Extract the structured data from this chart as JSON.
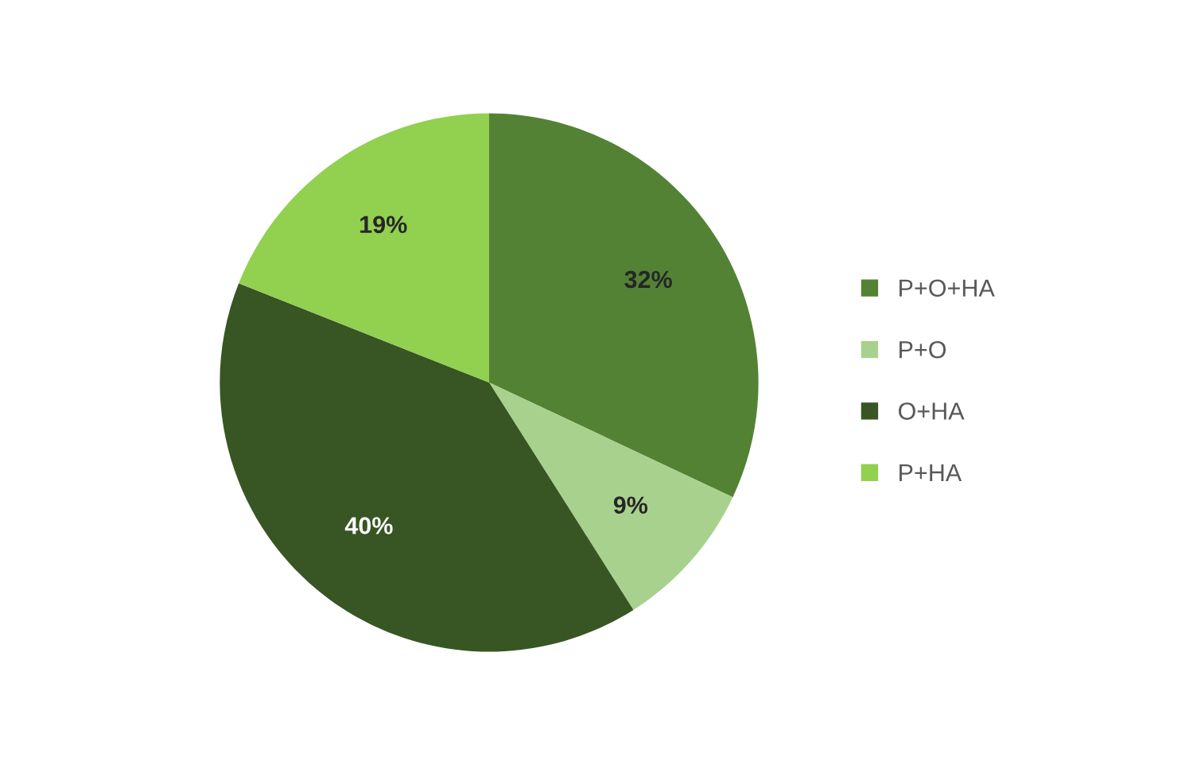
{
  "chart_data": {
    "type": "pie",
    "categories": [
      "P+O+HA",
      "P+O",
      "O+HA",
      "P+HA"
    ],
    "values": [
      32,
      9,
      40,
      19
    ],
    "colors": [
      "#548235",
      "#a9d18e",
      "#375623",
      "#92d050"
    ],
    "value_labels": [
      "32%",
      "9%",
      "40%",
      "19%"
    ],
    "legend": "right"
  }
}
